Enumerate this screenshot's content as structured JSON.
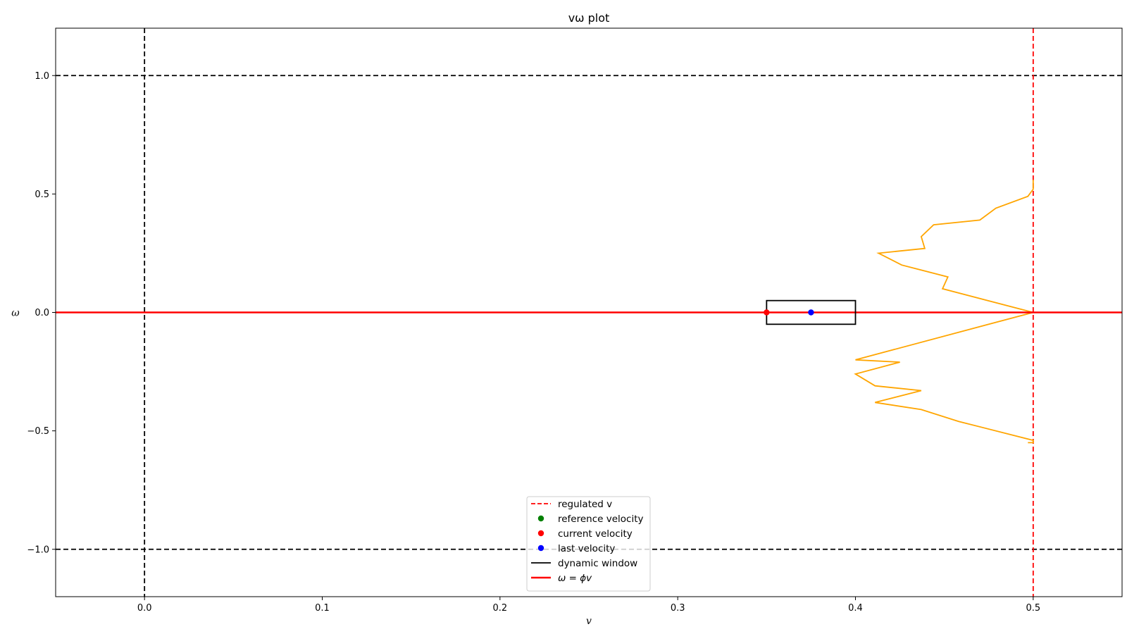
{
  "chart_data": {
    "type": "line",
    "title": "vω plot",
    "xlabel": "v",
    "ylabel": "ω",
    "xlim": [
      -0.05,
      0.55
    ],
    "ylim": [
      -1.2,
      1.2
    ],
    "xticks": [
      0.0,
      0.1,
      0.2,
      0.3,
      0.4,
      0.5
    ],
    "xtick_labels": [
      "0.0",
      "0.1",
      "0.2",
      "0.3",
      "0.4",
      "0.5"
    ],
    "yticks": [
      -1.0,
      -0.5,
      0.0,
      0.5,
      1.0
    ],
    "ytick_labels": [
      "−1.0",
      "−0.5",
      "0.0",
      "0.5",
      "1.0"
    ],
    "grid": false,
    "legend_position": "bottom-center",
    "colors": {
      "regulated_v": "#ff0000",
      "reference_velocity": "#008000",
      "current_velocity": "#ff0000",
      "last_velocity": "#0000ff",
      "dynamic_window": "#000000",
      "omega_line": "#ff0000",
      "candidate_trace": "#ffa500",
      "limit_lines": "#000000"
    },
    "limit_lines": {
      "v_zero": 0.0,
      "omega_max": 1.0,
      "omega_min": -1.0
    },
    "regulated_v": 0.5,
    "reference_velocity": null,
    "current_velocity": {
      "v": 0.35,
      "omega": 0.0
    },
    "last_velocity": {
      "v": 0.375,
      "omega": 0.0
    },
    "dynamic_window": {
      "v_min": 0.35,
      "v_max": 0.4,
      "omega_min": -0.05,
      "omega_max": 0.05
    },
    "omega_phi_v": {
      "phi": 0.0,
      "v_range": [
        -0.05,
        0.55
      ]
    },
    "candidate_trace": {
      "name": "",
      "v": [
        0.5,
        0.5,
        0.497,
        0.479,
        0.47,
        0.444,
        0.437,
        0.439,
        0.413,
        0.426,
        0.452,
        0.449,
        0.5,
        0.4,
        0.425,
        0.4,
        0.411,
        0.437,
        0.411,
        0.437,
        0.458,
        0.5,
        0.5,
        0.497
      ],
      "omega": [
        0.56,
        0.52,
        0.49,
        0.44,
        0.39,
        0.37,
        0.32,
        0.27,
        0.25,
        0.2,
        0.15,
        0.1,
        0.0,
        -0.2,
        -0.21,
        -0.26,
        -0.31,
        -0.33,
        -0.38,
        -0.41,
        -0.46,
        -0.54,
        -0.55,
        -0.55
      ]
    },
    "legend": [
      {
        "label": "regulated v",
        "kind": "dashed-line",
        "color": "#ff0000"
      },
      {
        "label": "reference velocity",
        "kind": "marker",
        "color": "#008000"
      },
      {
        "label": "current velocity",
        "kind": "marker",
        "color": "#ff0000"
      },
      {
        "label": "last velocity",
        "kind": "marker",
        "color": "#0000ff"
      },
      {
        "label": "dynamic window",
        "kind": "line",
        "color": "#000000"
      },
      {
        "label": "ω = ϕv",
        "kind": "thick-line",
        "color": "#ff0000"
      }
    ]
  }
}
